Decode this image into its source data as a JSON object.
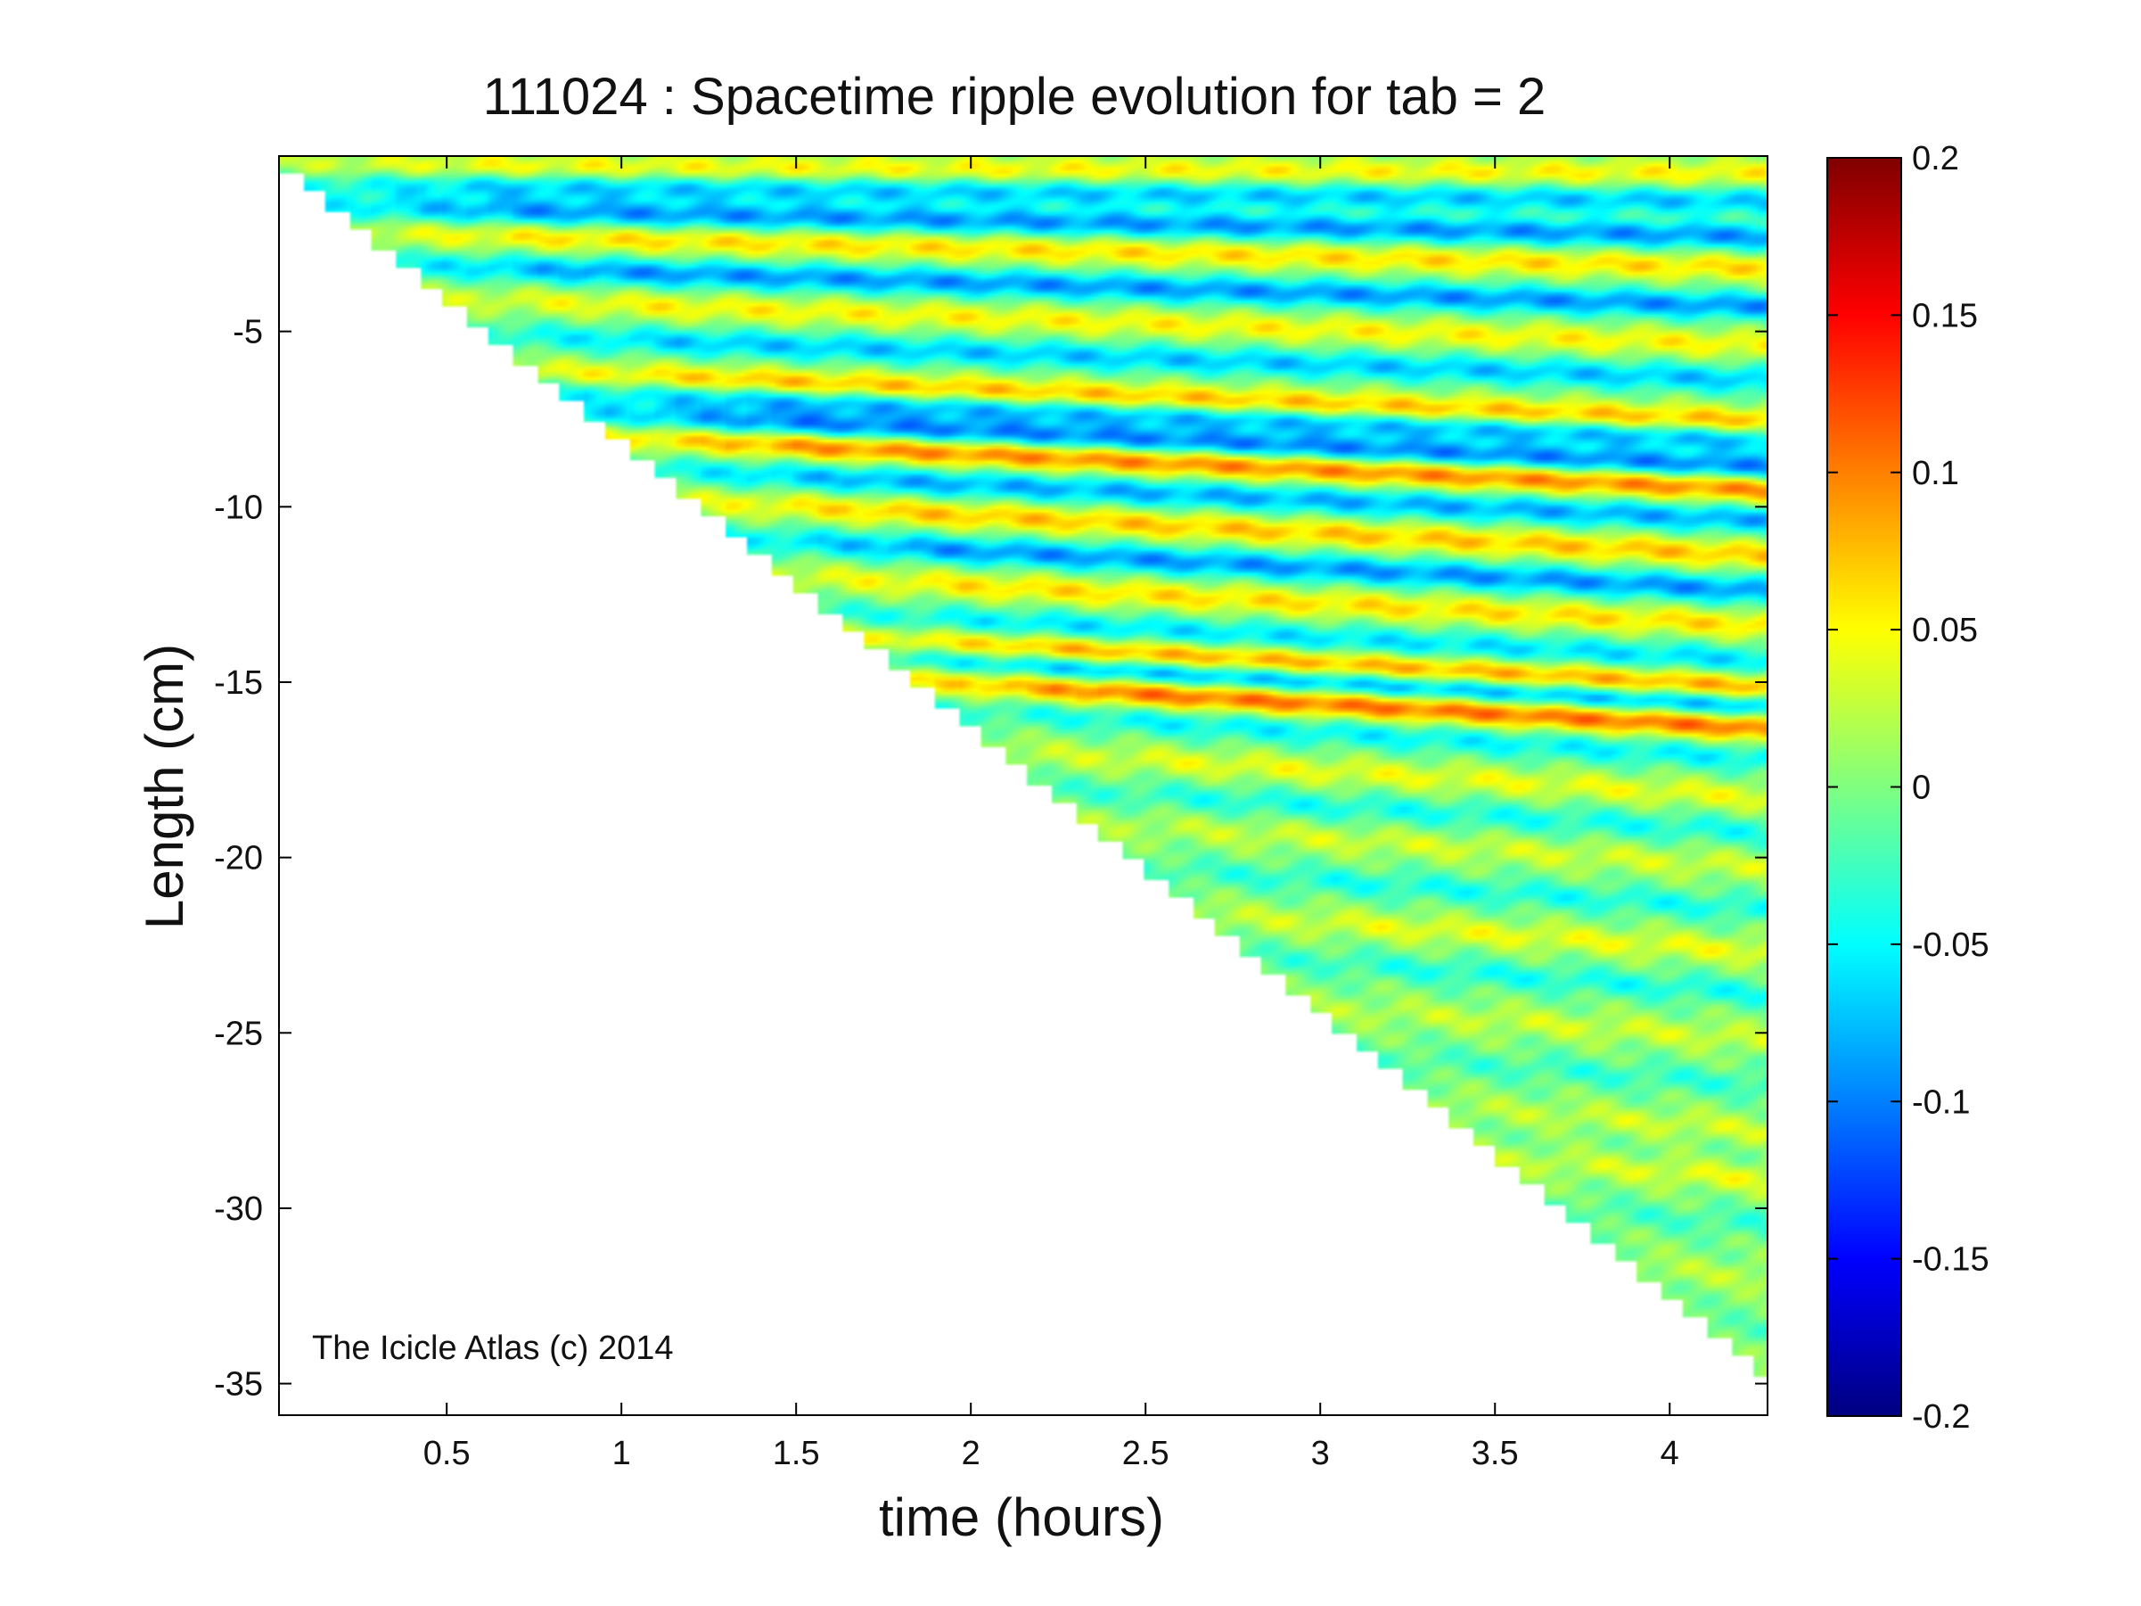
{
  "chart_data": {
    "type": "heatmap",
    "title": "111024 : Spacetime ripple evolution for tab = 2",
    "xlabel": "time (hours)",
    "ylabel": "Length (cm)",
    "xlim": [
      0.02,
      4.28
    ],
    "ylim": [
      -35.9,
      0.0
    ],
    "x_ticks": [
      0.5,
      1,
      1.5,
      2,
      2.5,
      3,
      3.5,
      4
    ],
    "x_tick_labels": [
      "0.5",
      "1",
      "1.5",
      "2",
      "2.5",
      "3",
      "3.5",
      "4"
    ],
    "y_ticks": [
      -5,
      -10,
      -15,
      -20,
      -25,
      -30,
      -35
    ],
    "y_tick_labels": [
      "-5",
      "-10",
      "-15",
      "-20",
      "-25",
      "-30",
      "-35"
    ],
    "colorbar": {
      "min": -0.2,
      "max": 0.2,
      "ticks": [
        0.2,
        0.15,
        0.1,
        0.05,
        0,
        -0.05,
        -0.1,
        -0.15,
        -0.2
      ],
      "tick_labels": [
        "0.2",
        "0.15",
        "0.1",
        "0.05",
        "0",
        "-0.05",
        "-0.1",
        "-0.15",
        "-0.2"
      ],
      "colormap": "jet"
    },
    "growth_front": {
      "description": "data exists only above the icicle tip position, which grows linearly",
      "start": [
        0.02,
        -0.5
      ],
      "end": [
        4.28,
        -35.1
      ]
    },
    "ripple_bands": [
      {
        "y_end": -0.5,
        "slope": 0.05,
        "amplitude": 0.05
      },
      {
        "y_end": -1.3,
        "slope": 0.12,
        "amplitude": -0.07
      },
      {
        "y_end": -2.3,
        "slope": 0.2,
        "amplitude": -0.09
      },
      {
        "y_end": -3.2,
        "slope": 0.25,
        "amplitude": 0.06
      },
      {
        "y_end": -4.3,
        "slope": 0.3,
        "amplitude": -0.09
      },
      {
        "y_end": -5.4,
        "slope": 0.35,
        "amplitude": 0.05
      },
      {
        "y_end": -6.4,
        "slope": 0.35,
        "amplitude": -0.07
      },
      {
        "y_end": -7.6,
        "slope": 0.4,
        "amplitude": 0.08
      },
      {
        "y_end": -8.1,
        "slope": 0.4,
        "amplitude": -0.08
      },
      {
        "y_end": -8.9,
        "slope": 0.45,
        "amplitude": -0.1
      },
      {
        "y_end": -9.5,
        "slope": 0.45,
        "amplitude": 0.1
      },
      {
        "y_end": -10.4,
        "slope": 0.45,
        "amplitude": -0.08
      },
      {
        "y_end": -11.4,
        "slope": 0.5,
        "amplitude": 0.07
      },
      {
        "y_end": -12.4,
        "slope": 0.5,
        "amplitude": -0.09
      },
      {
        "y_end": -13.4,
        "slope": 0.5,
        "amplitude": 0.06
      },
      {
        "y_end": -14.4,
        "slope": 0.5,
        "amplitude": -0.06
      },
      {
        "y_end": -15.2,
        "slope": 0.55,
        "amplitude": 0.09
      },
      {
        "y_end": -15.7,
        "slope": 0.55,
        "amplitude": -0.09
      },
      {
        "y_end": -16.3,
        "slope": 0.55,
        "amplitude": 0.11
      },
      {
        "y_end": -17.2,
        "slope": 0.6,
        "amplitude": -0.05
      },
      {
        "y_end": -18.3,
        "slope": 0.6,
        "amplitude": 0.04
      },
      {
        "y_end": -19.3,
        "slope": 0.6,
        "amplitude": -0.04
      },
      {
        "y_end": -20.3,
        "slope": 0.65,
        "amplitude": 0.03
      },
      {
        "y_end": -21.5,
        "slope": 0.65,
        "amplitude": -0.04
      },
      {
        "y_end": -22.7,
        "slope": 0.65,
        "amplitude": 0.04
      },
      {
        "y_end": -23.9,
        "slope": 0.7,
        "amplitude": -0.04
      },
      {
        "y_end": -25.2,
        "slope": 0.7,
        "amplitude": 0.03
      },
      {
        "y_end": -26.5,
        "slope": 0.7,
        "amplitude": -0.03
      },
      {
        "y_end": -27.8,
        "slope": 0.75,
        "amplitude": 0.03
      },
      {
        "y_end": -29.2,
        "slope": 0.75,
        "amplitude": 0.04
      },
      {
        "y_end": -30.5,
        "slope": 0.75,
        "amplitude": -0.03
      },
      {
        "y_end": -32.0,
        "slope": 0.8,
        "amplitude": 0.03
      },
      {
        "y_end": -33.5,
        "slope": 0.8,
        "amplitude": -0.02
      },
      {
        "y_end": -34.8,
        "slope": 0.8,
        "amplitude": 0.02
      }
    ]
  },
  "watermark": "The Icicle Atlas (c) 2014"
}
